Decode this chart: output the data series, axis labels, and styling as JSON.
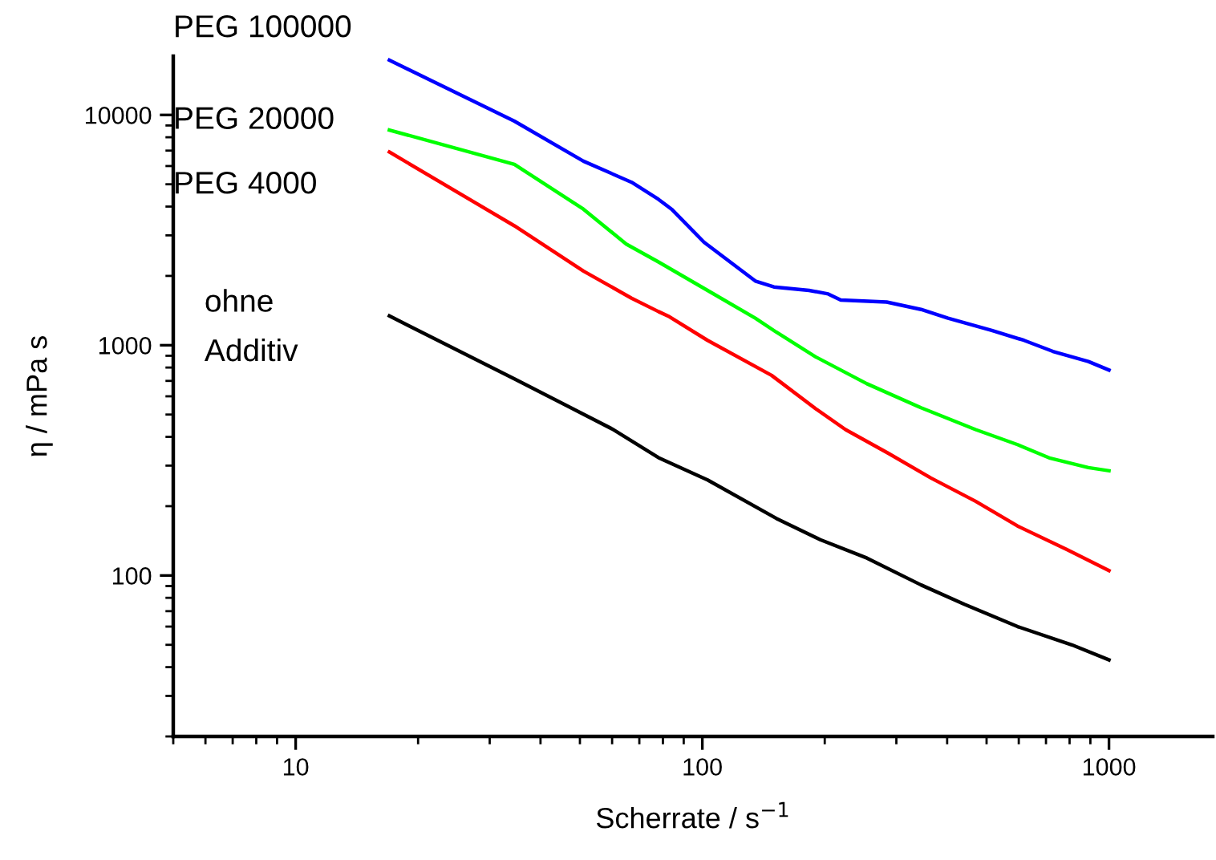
{
  "chart_data": {
    "type": "line",
    "xlabel": "Scherrate / s$^{−1}$",
    "ylabel": "η / mPa s",
    "log": "xy",
    "grid": false,
    "marker": "none",
    "line_style": "solid",
    "xlim": [
      5,
      1800
    ],
    "xticks": [
      10,
      100,
      1000
    ],
    "ylim": [
      20,
      18000
    ],
    "yticks": [
      100,
      1000,
      10000
    ],
    "series": [
      {
        "name": "PEG 100000",
        "color": "#0000ff",
        "x": [
          17,
          34.5,
          51,
          67,
          78,
          84,
          101,
          135,
          150,
          183,
          204,
          219,
          284,
          345,
          402,
          515,
          618,
          728,
          890,
          1000
        ],
        "values": [
          17300,
          9400,
          6300,
          5100,
          4300,
          3900,
          2800,
          1900,
          1790,
          1730,
          1670,
          1570,
          1540,
          1430,
          1310,
          1160,
          1050,
          940,
          850,
          780
        ]
      },
      {
        "name": "PEG 20000",
        "color": "#00ff00",
        "x": [
          17,
          34.5,
          51,
          65,
          78,
          103,
          135,
          152,
          190,
          254,
          345,
          470,
          596,
          717,
          890,
          1000
        ],
        "values": [
          8600,
          6100,
          3900,
          2750,
          2300,
          1730,
          1310,
          1140,
          890,
          680,
          535,
          430,
          370,
          323,
          294,
          285
        ]
      },
      {
        "name": "PEG 4000",
        "color": "#ff0000",
        "x": [
          17,
          34.5,
          51,
          67,
          78,
          83,
          103,
          148,
          190,
          225,
          286,
          365,
          470,
          596,
          786,
          1000
        ],
        "values": [
          6900,
          3300,
          2100,
          1600,
          1400,
          1330,
          1050,
          740,
          530,
          430,
          340,
          265,
          210,
          164,
          130,
          105
        ]
      },
      {
        "name": "ohne\nAdditiv",
        "color": "#000000",
        "x": [
          17,
          34.5,
          60,
          78,
          103,
          152,
          195,
          254,
          345,
          441,
          596,
          810,
          1000
        ],
        "values": [
          1340,
          715,
          433,
          325,
          260,
          177,
          143,
          119,
          91,
          75,
          60,
          50,
          43
        ]
      }
    ]
  }
}
